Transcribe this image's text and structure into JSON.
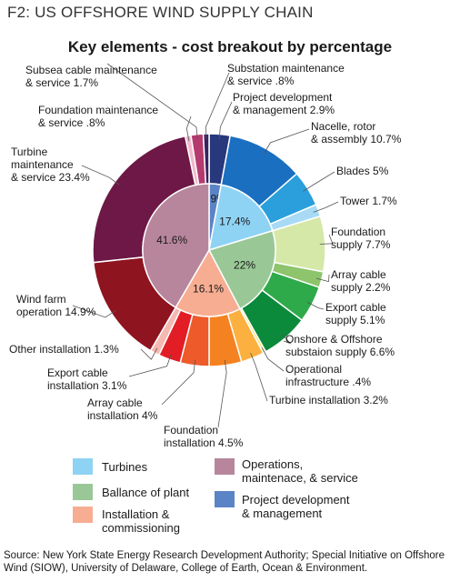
{
  "figure_label": "F2:  US OFFSHORE WIND SUPPLY CHAIN",
  "chart_data": {
    "type": "pie",
    "title": "Key elements - cost breakout by percentage",
    "inner": [
      {
        "label": "2.9%",
        "value": 2.9,
        "group": "project",
        "color": "#5a84c6"
      },
      {
        "label": "17.4%",
        "value": 17.4,
        "group": "turbines",
        "color": "#8fd3f4"
      },
      {
        "label": "22%",
        "value": 22.0,
        "group": "bop",
        "color": "#99c896"
      },
      {
        "label": "16.1%",
        "value": 16.1,
        "group": "install",
        "color": "#f7ad92"
      },
      {
        "label": "41.6%",
        "value": 41.6,
        "group": "ops",
        "color": "#b8869c"
      }
    ],
    "outer": [
      {
        "label": "Project development & management 2.9%",
        "value": 2.9,
        "color": "#27387c"
      },
      {
        "label": "Nacelle, rotor & assembly 10.7%",
        "value": 10.7,
        "color": "#1a6fc0"
      },
      {
        "label": "Blades 5%",
        "value": 5.0,
        "color": "#2a9fdc"
      },
      {
        "label": "Tower 1.7%",
        "value": 1.7,
        "color": "#a8daf5"
      },
      {
        "label": "Foundation supply 7.7%",
        "value": 7.7,
        "color": "#d6e8a8"
      },
      {
        "label": "Array cable supply 2.2%",
        "value": 2.2,
        "color": "#8dc46c"
      },
      {
        "label": "Export cable supply 5.1%",
        "value": 5.1,
        "color": "#2faa4a"
      },
      {
        "label": "Onshore & Offshore substaion supply 6.6%",
        "value": 6.6,
        "color": "#0c8a3c"
      },
      {
        "label": "Operational infrastructure .4%",
        "value": 0.4,
        "color": "#ffe070"
      },
      {
        "label": "Turbine installation 3.2%",
        "value": 3.2,
        "color": "#fbb040"
      },
      {
        "label": "Foundation installation 4.5%",
        "value": 4.5,
        "color": "#f58220"
      },
      {
        "label": "Array cable installation 4%",
        "value": 4.0,
        "color": "#ee5a2a"
      },
      {
        "label": "Export cable installation 3.1%",
        "value": 3.1,
        "color": "#e31d25"
      },
      {
        "label": "Other installation 1.3%",
        "value": 1.3,
        "color": "#f6b8b0"
      },
      {
        "label": "Wind farm operation 14.9%",
        "value": 14.9,
        "color": "#8e1420"
      },
      {
        "label": "Turbine maintenance & service 23.4%",
        "value": 23.4,
        "color": "#6d1846"
      },
      {
        "label": "Foundation maintenance & service .8%",
        "value": 0.8,
        "color": "#f2b8cc"
      },
      {
        "label": "Subsea cable maintenance & service 1.7%",
        "value": 1.7,
        "color": "#b53a6e"
      },
      {
        "label": "Substation maintenance & service .8%",
        "value": 0.8,
        "color": "#3a2060"
      }
    ],
    "legend": [
      {
        "label": "Turbines",
        "color": "#8fd3f4"
      },
      {
        "label": "Operations, maintenace, & service",
        "color": "#b8869c"
      },
      {
        "label": "Ballance of plant",
        "color": "#99c896"
      },
      {
        "label": "Project development & management",
        "color": "#5a84c6"
      },
      {
        "label": "Installation & commissioning",
        "color": "#f7ad92"
      }
    ]
  },
  "labels": {
    "subsea": [
      "Subsea cable maintenance",
      "& service 1.7%"
    ],
    "substation": [
      "Substation maintenance",
      "& service .8%"
    ],
    "project": [
      "Project development",
      "& management 2.9%"
    ],
    "nacelle": [
      "Nacelle, rotor",
      "& assembly 10.7%"
    ],
    "foundation_maint": [
      "Foundation maintenance",
      "& service .8%"
    ],
    "turbine_maint": [
      "Turbine",
      "maintenance",
      "& service 23.4%"
    ],
    "blades": [
      "Blades 5%"
    ],
    "tower": [
      "Tower 1.7%"
    ],
    "foundation_supply": [
      "Foundation",
      "supply 7.7%"
    ],
    "array_supply": [
      "Array cable",
      "supply 2.2%"
    ],
    "export_supply": [
      "Export cable",
      "supply 5.1%"
    ],
    "wind_farm": [
      "Wind farm",
      "operation 14.9%"
    ],
    "onshore": [
      "Onshore & Offshore",
      "substaion supply 6.6%"
    ],
    "other_install": [
      "Other installation 1.3%"
    ],
    "op_infra": [
      "Operational",
      "infrastructure .4%"
    ],
    "export_install": [
      "Export cable",
      "installation 3.1%"
    ],
    "turbine_install": [
      "Turbine installation 3.2%"
    ],
    "array_install": [
      "Array cable",
      "installation 4%"
    ],
    "foundation_install": [
      "Foundation",
      "installation 4.5%"
    ]
  },
  "legend_text": {
    "turbines": [
      "Turbines"
    ],
    "ops": [
      "Operations,",
      "maintenace, & service"
    ],
    "bop": [
      "Ballance of plant"
    ],
    "project": [
      "Project development",
      "& management"
    ],
    "install": [
      "Installation &",
      "commissioning"
    ]
  },
  "source": "Source: New York State Energy Research Development Authority; Special Initiative on Offshore Wind (SIOW), University of Delaware, College of Earth, Ocean & Environment."
}
